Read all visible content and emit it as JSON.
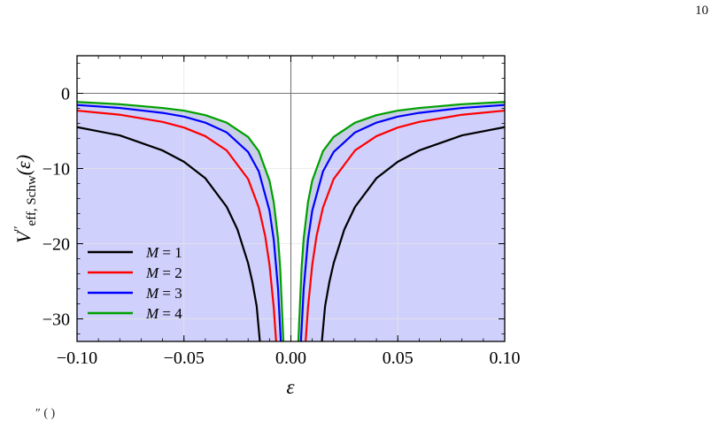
{
  "page": {
    "page_number": "10"
  },
  "chart_data": {
    "type": "line",
    "xlabel": "ε",
    "ylabel": {
      "base": "V",
      "prime": "′′",
      "subscript": "eff, Schw",
      "arg": "(ε)"
    },
    "xlim": [
      -0.1,
      0.1
    ],
    "ylim": [
      -33,
      5
    ],
    "x_ticks": [
      -0.1,
      -0.05,
      0.0,
      0.05,
      0.1
    ],
    "x_tick_labels": [
      "−0.10",
      "−0.05",
      "0.00",
      "0.05",
      "0.10"
    ],
    "y_ticks": [
      0,
      -10,
      -20,
      -30
    ],
    "y_tick_labels": [
      "0",
      "−10",
      "−20",
      "−30"
    ],
    "reference_lines": {
      "x": 0,
      "y": 0
    },
    "grid": true,
    "legend_position": "lower-left",
    "fill": {
      "description_color": "#cfd0fb",
      "between_color": "#c9cfe6"
    },
    "series": [
      {
        "name": "M = 1",
        "label_var": "M",
        "label_val": "1",
        "color": "#000000",
        "x": [
          -0.1,
          -0.08,
          -0.06,
          -0.05,
          -0.04,
          -0.03,
          -0.025,
          -0.02,
          -0.018,
          -0.016,
          -0.0145,
          0.0145,
          0.016,
          0.018,
          0.02,
          0.025,
          0.03,
          0.04,
          0.05,
          0.06,
          0.08,
          0.1
        ],
        "y": [
          -4.5,
          -5.6,
          -7.6,
          -9.1,
          -11.3,
          -15.1,
          -18.1,
          -22.6,
          -25.1,
          -28.3,
          -33.0,
          -33.0,
          -28.3,
          -25.1,
          -22.6,
          -18.1,
          -15.1,
          -11.3,
          -9.1,
          -7.6,
          -5.6,
          -4.5
        ]
      },
      {
        "name": "M = 2",
        "label_var": "M",
        "label_val": "2",
        "color": "#ff0000",
        "x": [
          -0.1,
          -0.08,
          -0.06,
          -0.05,
          -0.04,
          -0.03,
          -0.02,
          -0.015,
          -0.012,
          -0.01,
          -0.008,
          -0.0069,
          0.0069,
          0.008,
          0.01,
          0.012,
          0.015,
          0.02,
          0.03,
          0.04,
          0.05,
          0.06,
          0.08,
          0.1
        ],
        "y": [
          -2.3,
          -2.85,
          -3.8,
          -4.55,
          -5.7,
          -7.6,
          -11.4,
          -15.2,
          -19.0,
          -22.8,
          -28.5,
          -33.0,
          -33.0,
          -28.5,
          -22.8,
          -19.0,
          -15.2,
          -11.4,
          -7.6,
          -5.7,
          -4.55,
          -3.8,
          -2.85,
          -2.3
        ]
      },
      {
        "name": "M = 3",
        "label_var": "M",
        "label_val": "3",
        "color": "#0000ff",
        "x": [
          -0.1,
          -0.08,
          -0.06,
          -0.05,
          -0.04,
          -0.03,
          -0.02,
          -0.015,
          -0.01,
          -0.008,
          -0.006,
          -0.0047,
          0.0047,
          0.006,
          0.008,
          0.01,
          0.015,
          0.02,
          0.03,
          0.04,
          0.05,
          0.06,
          0.08,
          0.1
        ],
        "y": [
          -1.55,
          -1.95,
          -2.6,
          -3.1,
          -3.9,
          -5.2,
          -7.8,
          -10.4,
          -15.6,
          -19.5,
          -26.0,
          -33.0,
          -33.0,
          -26.0,
          -19.5,
          -15.6,
          -10.4,
          -7.8,
          -5.2,
          -3.9,
          -3.1,
          -2.6,
          -1.95,
          -1.55
        ]
      },
      {
        "name": "M = 4",
        "label_var": "M",
        "label_val": "4",
        "color": "#00a000",
        "x": [
          -0.1,
          -0.08,
          -0.06,
          -0.05,
          -0.04,
          -0.03,
          -0.02,
          -0.015,
          -0.01,
          -0.008,
          -0.006,
          -0.005,
          -0.0035,
          0.0035,
          0.005,
          0.006,
          0.008,
          0.01,
          0.015,
          0.02,
          0.03,
          0.04,
          0.05,
          0.06,
          0.08,
          0.1
        ],
        "y": [
          -1.15,
          -1.45,
          -1.95,
          -2.3,
          -2.9,
          -3.9,
          -5.8,
          -7.7,
          -11.6,
          -14.5,
          -19.3,
          -23.2,
          -33.0,
          -33.0,
          -23.2,
          -19.3,
          -14.5,
          -11.6,
          -7.7,
          -5.8,
          -3.9,
          -2.9,
          -2.3,
          -1.95,
          -1.45,
          -1.15
        ]
      }
    ]
  },
  "caption_fragment": "″  ( )"
}
